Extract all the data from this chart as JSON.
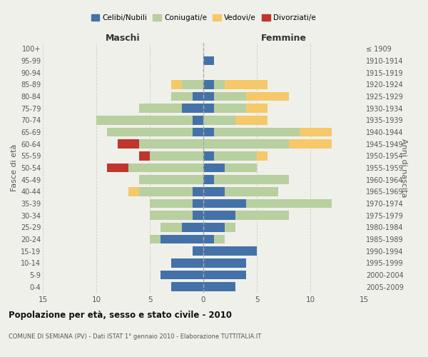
{
  "age_groups": [
    "0-4",
    "5-9",
    "10-14",
    "15-19",
    "20-24",
    "25-29",
    "30-34",
    "35-39",
    "40-44",
    "45-49",
    "50-54",
    "55-59",
    "60-64",
    "65-69",
    "70-74",
    "75-79",
    "80-84",
    "85-89",
    "90-94",
    "95-99",
    "100+"
  ],
  "birth_years": [
    "2005-2009",
    "2000-2004",
    "1995-1999",
    "1990-1994",
    "1985-1989",
    "1980-1984",
    "1975-1979",
    "1970-1974",
    "1965-1969",
    "1960-1964",
    "1955-1959",
    "1950-1954",
    "1945-1949",
    "1940-1944",
    "1935-1939",
    "1930-1934",
    "1925-1929",
    "1920-1924",
    "1915-1919",
    "1910-1914",
    "≤ 1909"
  ],
  "males": {
    "celibi": [
      3,
      4,
      3,
      1,
      4,
      2,
      1,
      1,
      1,
      0,
      0,
      0,
      0,
      1,
      1,
      2,
      1,
      0,
      0,
      0,
      0
    ],
    "coniugati": [
      0,
      0,
      0,
      0,
      1,
      2,
      4,
      4,
      5,
      6,
      7,
      5,
      6,
      8,
      9,
      4,
      2,
      2,
      0,
      0,
      0
    ],
    "vedovi": [
      0,
      0,
      0,
      0,
      0,
      0,
      0,
      0,
      1,
      0,
      0,
      0,
      0,
      0,
      0,
      0,
      0,
      1,
      0,
      0,
      0
    ],
    "divorziati": [
      0,
      0,
      0,
      0,
      0,
      0,
      0,
      0,
      0,
      0,
      2,
      1,
      2,
      0,
      0,
      0,
      0,
      0,
      0,
      0,
      0
    ]
  },
  "females": {
    "nubili": [
      3,
      4,
      4,
      5,
      1,
      2,
      3,
      4,
      2,
      1,
      2,
      1,
      0,
      1,
      0,
      1,
      1,
      1,
      0,
      1,
      0
    ],
    "coniugate": [
      0,
      0,
      0,
      0,
      1,
      1,
      5,
      8,
      5,
      7,
      3,
      4,
      8,
      8,
      3,
      3,
      3,
      1,
      0,
      0,
      0
    ],
    "vedove": [
      0,
      0,
      0,
      0,
      0,
      0,
      0,
      0,
      0,
      0,
      0,
      1,
      4,
      3,
      3,
      2,
      4,
      4,
      0,
      0,
      0
    ],
    "divorziate": [
      0,
      0,
      0,
      0,
      0,
      0,
      0,
      0,
      0,
      0,
      0,
      0,
      0,
      0,
      0,
      0,
      0,
      0,
      0,
      0,
      0
    ]
  },
  "colors": {
    "celibi": "#4472a8",
    "coniugati": "#b8cfa0",
    "vedovi": "#f5c96a",
    "divorziati": "#c0362c"
  },
  "xlim": 15,
  "title": "Popolazione per età, sesso e stato civile - 2010",
  "subtitle": "COMUNE DI SEMIANA (PV) - Dati ISTAT 1° gennaio 2010 - Elaborazione TUTTITALIA.IT",
  "ylabel_left": "Fasce di età",
  "ylabel_right": "Anni di nascita",
  "xlabel_left": "Maschi",
  "xlabel_right": "Femmine",
  "bg_color": "#f0f0eb",
  "grid_color": "#cccccc"
}
